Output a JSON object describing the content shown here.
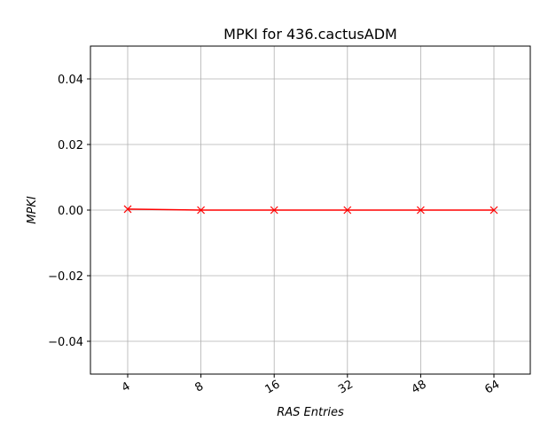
{
  "chart_data": {
    "type": "line",
    "title": "MPKI for 436.cactusADM",
    "xlabel": "RAS Entries",
    "ylabel": "MPKI",
    "categories": [
      "4",
      "8",
      "16",
      "32",
      "48",
      "64"
    ],
    "series": [
      {
        "values": [
          0.0003,
          0.0,
          0.0,
          0.0,
          0.0,
          0.0
        ],
        "color": "#ff0000",
        "marker": "x"
      }
    ],
    "ylim": [
      -0.05,
      0.05
    ],
    "yticks": [
      -0.04,
      -0.02,
      0.0,
      0.02,
      0.04
    ],
    "ytick_labels": [
      "−0.04",
      "−0.02",
      "0.00",
      "0.02",
      "0.04"
    ],
    "xtick_rotation": -30,
    "grid": true,
    "legend": "none"
  }
}
